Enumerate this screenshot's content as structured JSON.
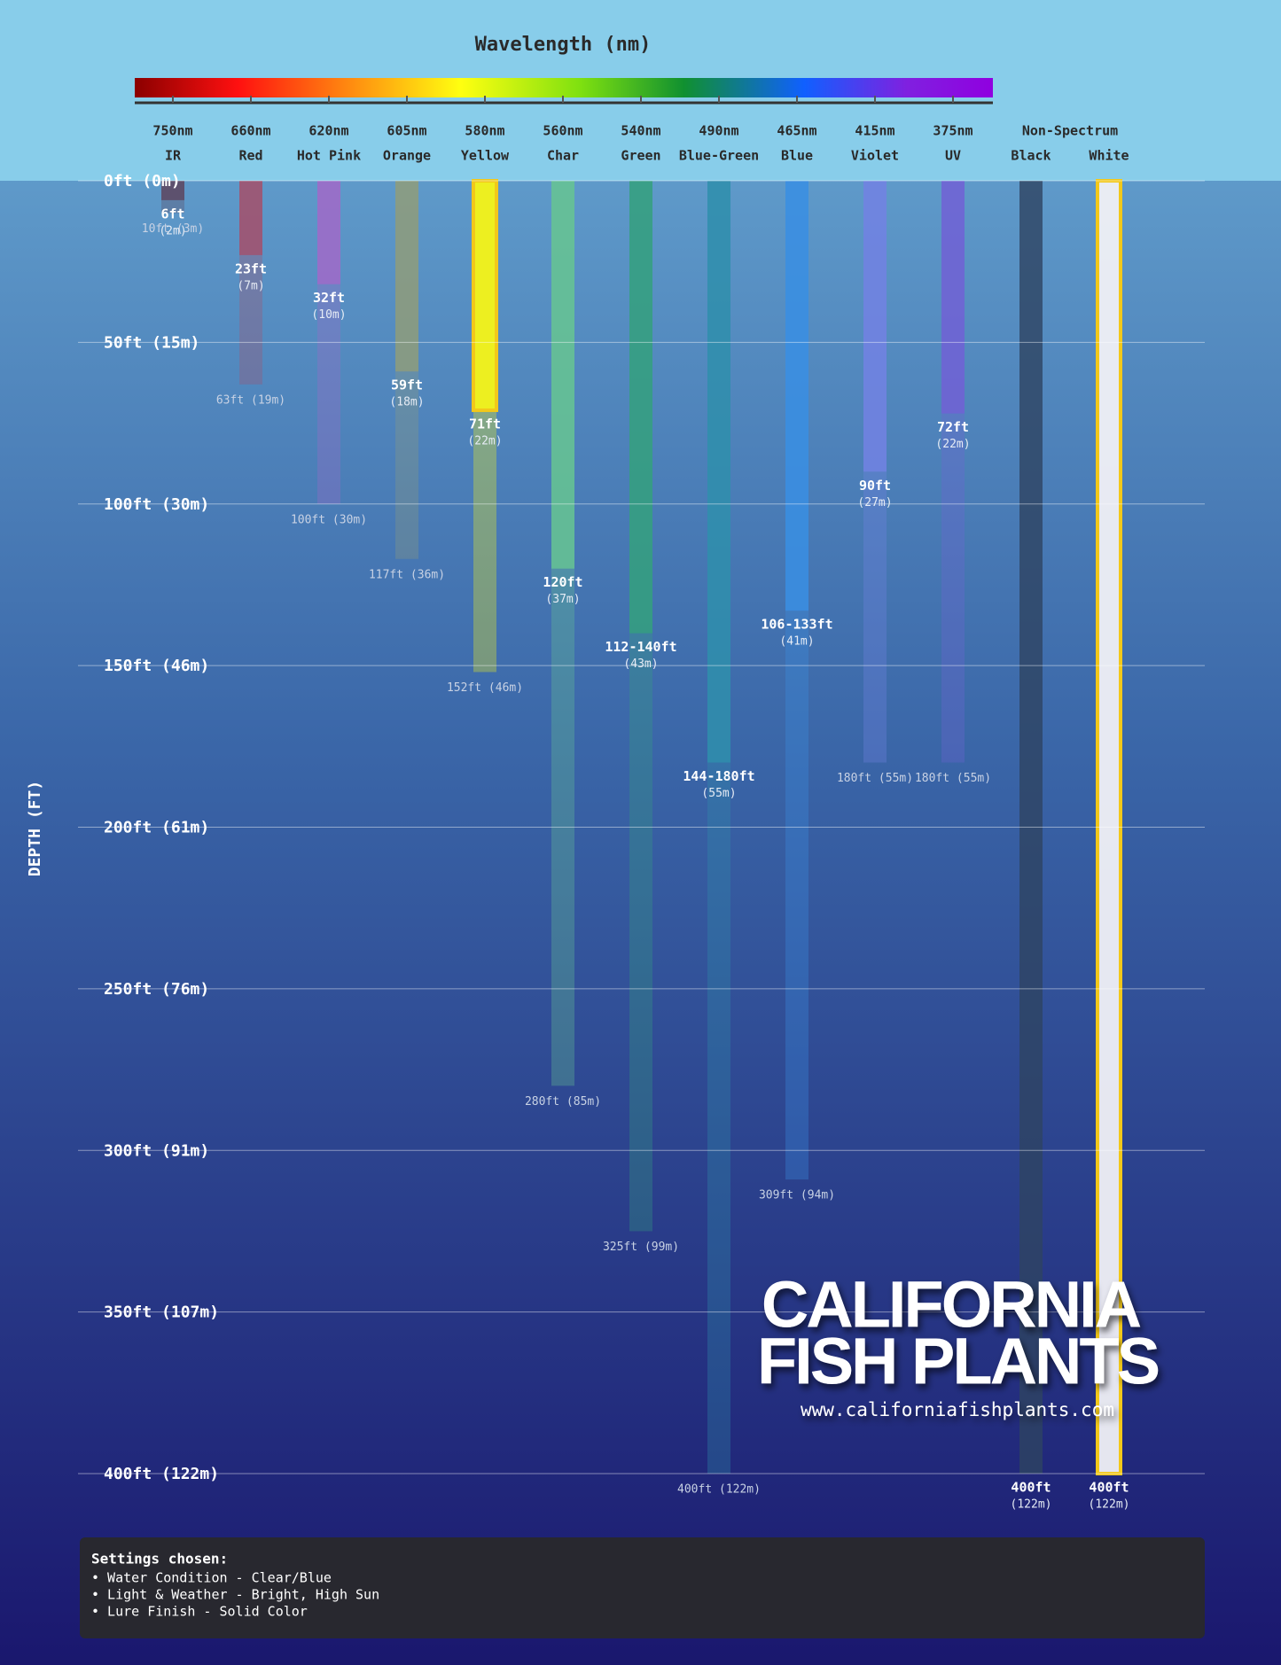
{
  "chart_data": {
    "type": "depth-range",
    "title": "Wavelength (nm)",
    "y_label": "DEPTH (FT)",
    "group_label": "Non-Spectrum",
    "ylim": [
      0,
      400
    ],
    "yticks": [
      {
        "value": 0,
        "label": "0ft (0m)"
      },
      {
        "value": 50,
        "label": "50ft (15m)"
      },
      {
        "value": 100,
        "label": "100ft (30m)"
      },
      {
        "value": 150,
        "label": "150ft (46m)"
      },
      {
        "value": 200,
        "label": "200ft (61m)"
      },
      {
        "value": 250,
        "label": "250ft (76m)"
      },
      {
        "value": 300,
        "label": "300ft (91m)"
      },
      {
        "value": 350,
        "label": "350ft (107m)"
      },
      {
        "value": 400,
        "label": "400ft (122m)"
      }
    ],
    "grid": true,
    "categories": [
      "IR",
      "Red",
      "Hot Pink",
      "Orange",
      "Yellow",
      "Char",
      "Green",
      "Blue-Green",
      "Blue",
      "Violet",
      "UV",
      "Black",
      "White"
    ],
    "wavelengths": [
      "750nm",
      "660nm",
      "620nm",
      "605nm",
      "580nm",
      "560nm",
      "540nm",
      "490nm",
      "465nm",
      "415nm",
      "375nm",
      null,
      null
    ],
    "colors": [
      "#5e4660",
      "#a4506c",
      "#a06ac8",
      "#8e9c7c",
      "#f2f21a",
      "#66c492",
      "#34a07e",
      "#2f8eac",
      "#3a8ee2",
      "#7282e2",
      "#7062d4",
      "#2e4462",
      "#f0f0f6"
    ],
    "highlighted": [
      "Yellow",
      "White"
    ],
    "visible": [
      6,
      23,
      32,
      59,
      71,
      120,
      140,
      180,
      133,
      90,
      72,
      400,
      400
    ],
    "visible_labels": [
      "6ft",
      "23ft",
      "32ft",
      "59ft",
      "71ft",
      "120ft",
      "112-140ft",
      "144-180ft",
      "106-133ft",
      "90ft",
      "72ft",
      "400ft",
      "400ft"
    ],
    "visible_metric": [
      "(2m)",
      "(7m)",
      "(10m)",
      "(18m)",
      "(22m)",
      "(37m)",
      "(43m)",
      "(55m)",
      "(41m)",
      "(27m)",
      "(22m)",
      "(122m)",
      "(122m)"
    ],
    "fade": [
      10,
      63,
      100,
      117,
      152,
      280,
      325,
      400,
      309,
      180,
      180,
      null,
      null
    ],
    "fade_labels": [
      "10ft (3m)",
      "63ft (19m)",
      "100ft (30m)",
      "117ft (36m)",
      "152ft (46m)",
      "280ft (85m)",
      "325ft (99m)",
      "400ft (122m)",
      "309ft (94m)",
      "180ft (55m)",
      "180ft (55m)",
      null,
      null
    ]
  },
  "watermark": {
    "line1": "CALIFORNIA",
    "line2": "FISH PLANTS",
    "url": "www.californiafishplants.com"
  },
  "settings": {
    "title": "Settings chosen:",
    "items": [
      "• Water Condition - Clear/Blue",
      "• Light & Weather - Bright, High Sun",
      "• Lure Finish - Solid Color"
    ]
  }
}
